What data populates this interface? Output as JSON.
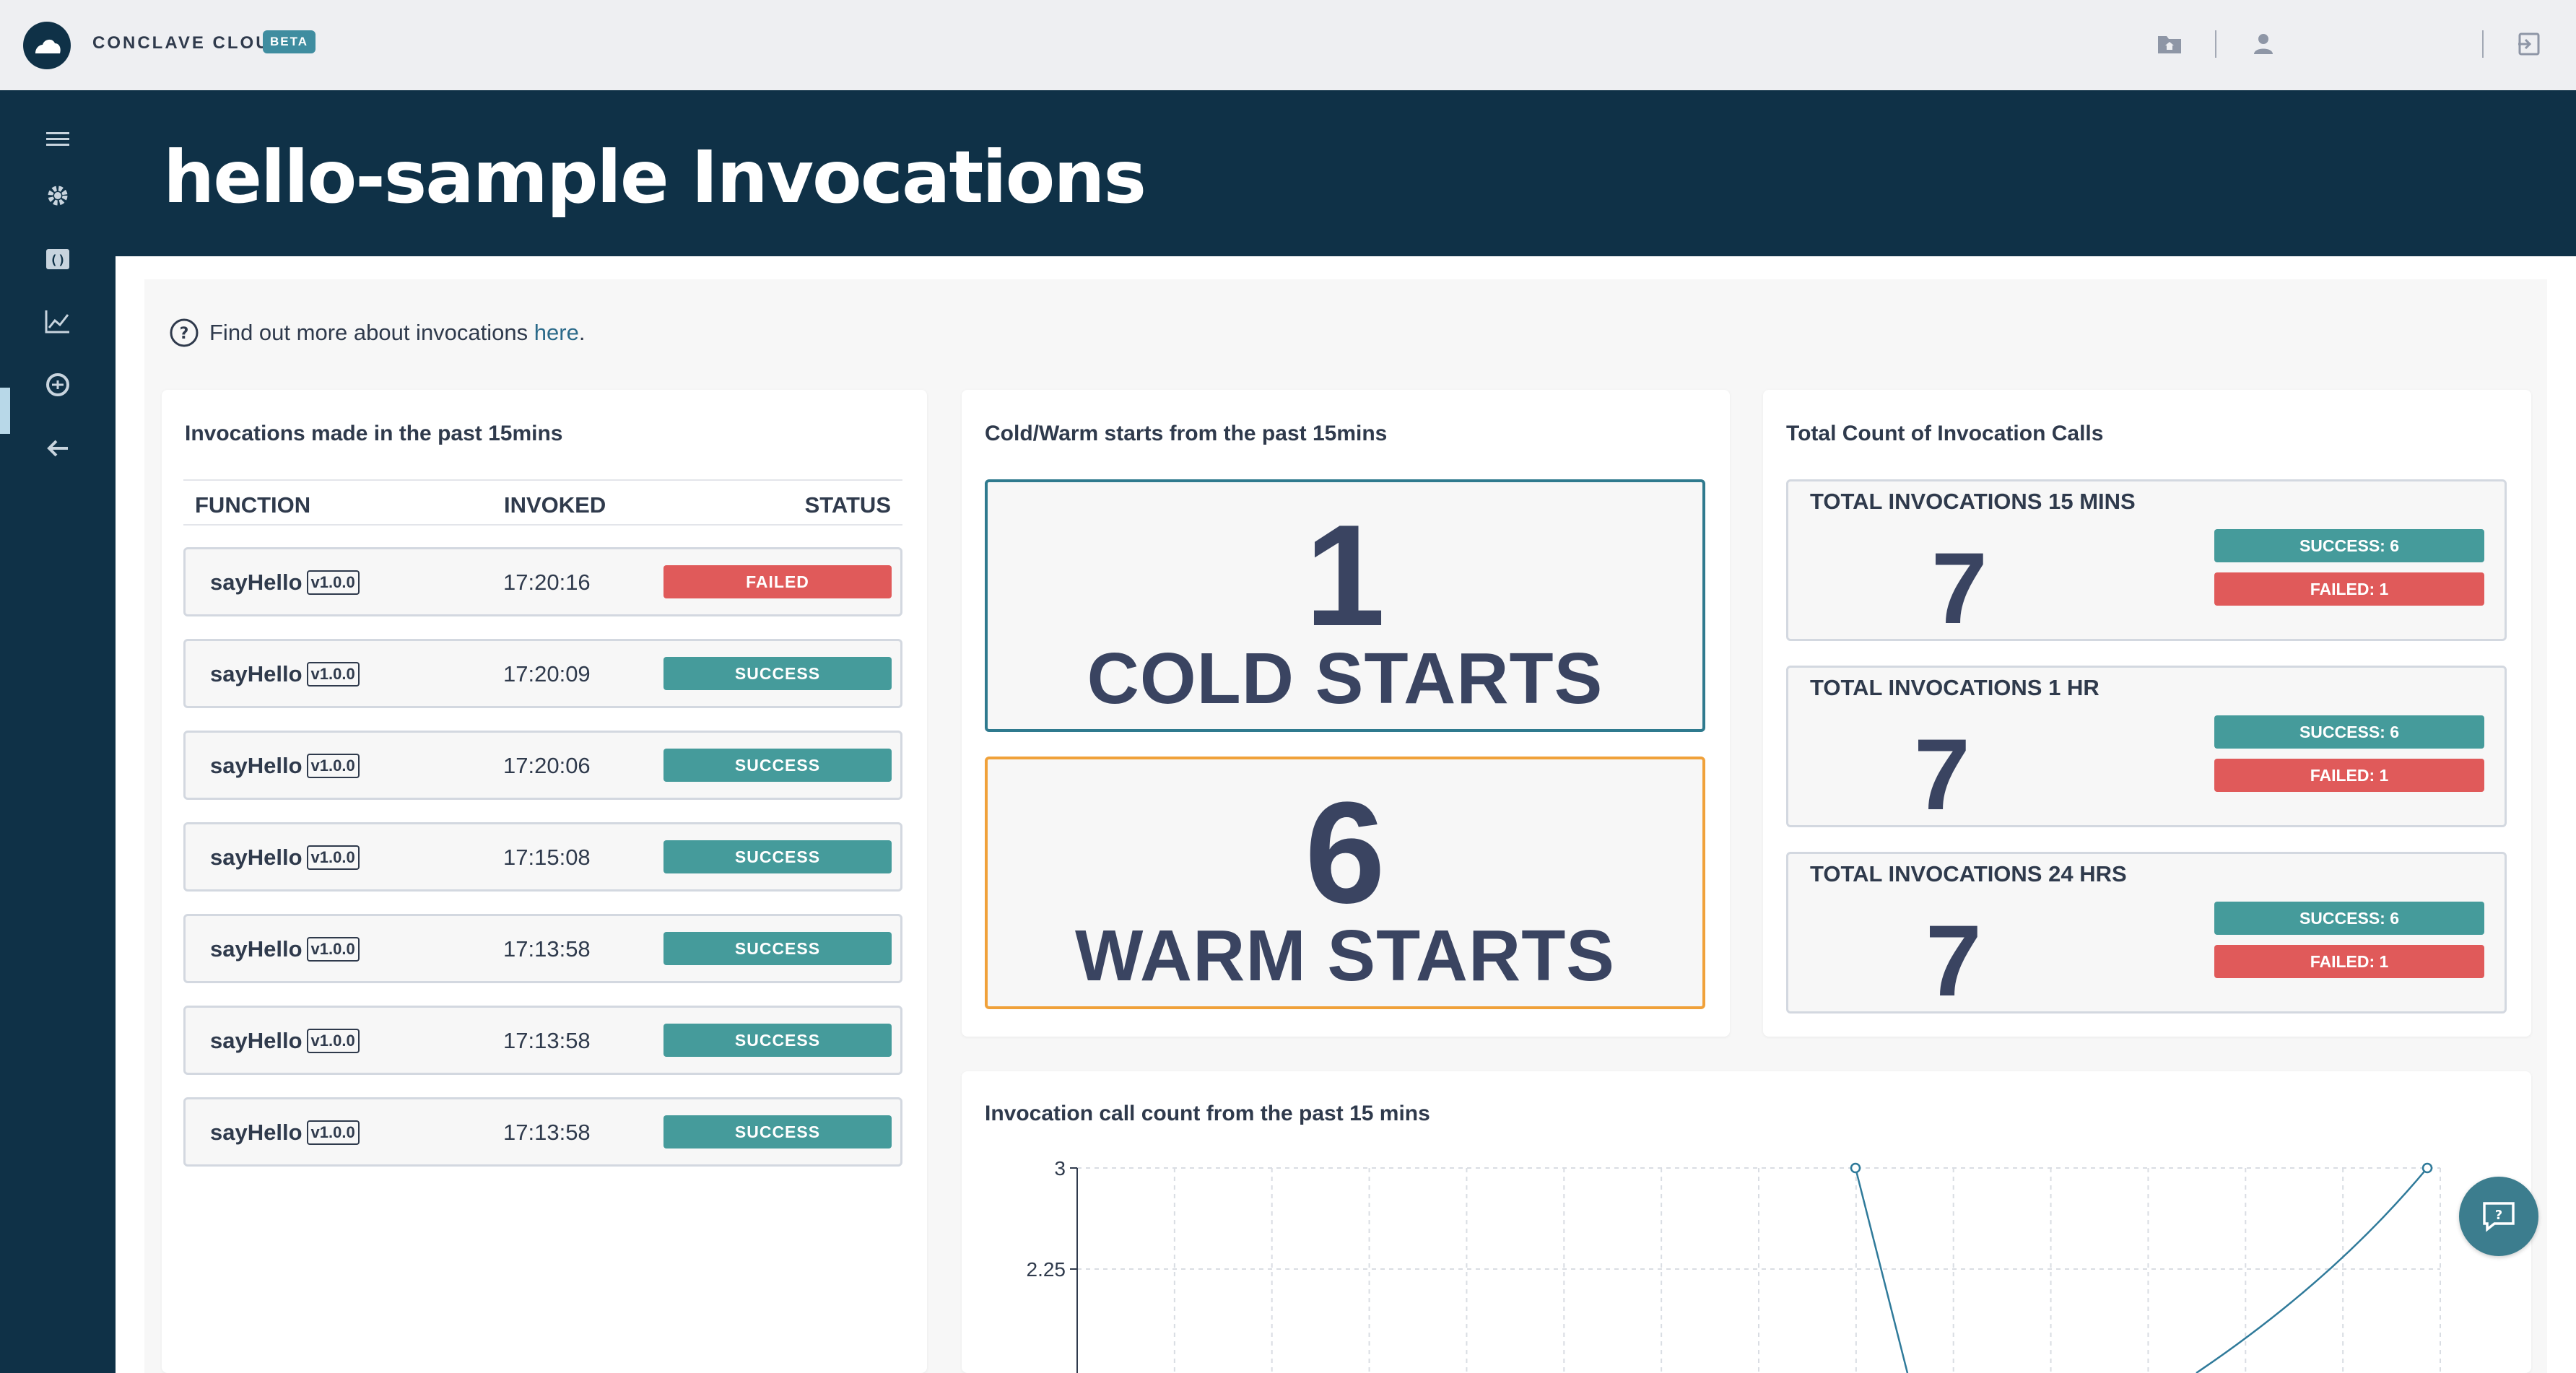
{
  "app": {
    "brand": "CONCLAVE CLOUD",
    "badge": "BETA"
  },
  "header": {
    "title": "hello-sample Invocations"
  },
  "info": {
    "text": "Find out more about invocations",
    "link": "here",
    "suffix": "."
  },
  "invocations": {
    "title": "Invocations made in the past 15mins",
    "columns": [
      "FUNCTION",
      "INVOKED",
      "STATUS"
    ],
    "rows": [
      {
        "function": "sayHello",
        "version": "v1.0.0",
        "invoked": "17:20:16",
        "status": "FAILED"
      },
      {
        "function": "sayHello",
        "version": "v1.0.0",
        "invoked": "17:20:09",
        "status": "SUCCESS"
      },
      {
        "function": "sayHello",
        "version": "v1.0.0",
        "invoked": "17:20:06",
        "status": "SUCCESS"
      },
      {
        "function": "sayHello",
        "version": "v1.0.0",
        "invoked": "17:15:08",
        "status": "SUCCESS"
      },
      {
        "function": "sayHello",
        "version": "v1.0.0",
        "invoked": "17:13:58",
        "status": "SUCCESS"
      },
      {
        "function": "sayHello",
        "version": "v1.0.0",
        "invoked": "17:13:58",
        "status": "SUCCESS"
      },
      {
        "function": "sayHello",
        "version": "v1.0.0",
        "invoked": "17:13:58",
        "status": "SUCCESS"
      }
    ]
  },
  "starts": {
    "title": "Cold/Warm starts from the past 15mins",
    "cold_count": "1",
    "cold_label": "COLD STARTS",
    "warm_count": "6",
    "warm_label": "WARM STARTS",
    "cold_color": "#2f7a8e",
    "warm_color": "#f0a13a"
  },
  "totals": {
    "title": "Total Count of Invocation Calls",
    "items": [
      {
        "label": "TOTAL INVOCATIONS 15 MINS",
        "count": "7",
        "success": "SUCCESS: 6",
        "failed": "FAILED: 1"
      },
      {
        "label": "TOTAL INVOCATIONS 1 HR",
        "count": "7",
        "success": "SUCCESS: 6",
        "failed": "FAILED: 1"
      },
      {
        "label": "TOTAL INVOCATIONS 24 HRS",
        "count": "7",
        "success": "SUCCESS: 6",
        "failed": "FAILED: 1"
      }
    ]
  },
  "chart_data": {
    "type": "line",
    "title": "Invocation call count from the past 15 mins",
    "yticks": [
      "3",
      "2.25"
    ],
    "ylim_visible": [
      2.25,
      3
    ],
    "series": [
      {
        "values_visible_points": [
          3,
          3
        ],
        "color": "#2f7a9a"
      }
    ],
    "grid": true,
    "note_visible": "Only the top portion of the chart is visible"
  },
  "colors": {
    "navy": "#0f3147",
    "success": "#459b9b",
    "failed": "#e05a5a"
  }
}
